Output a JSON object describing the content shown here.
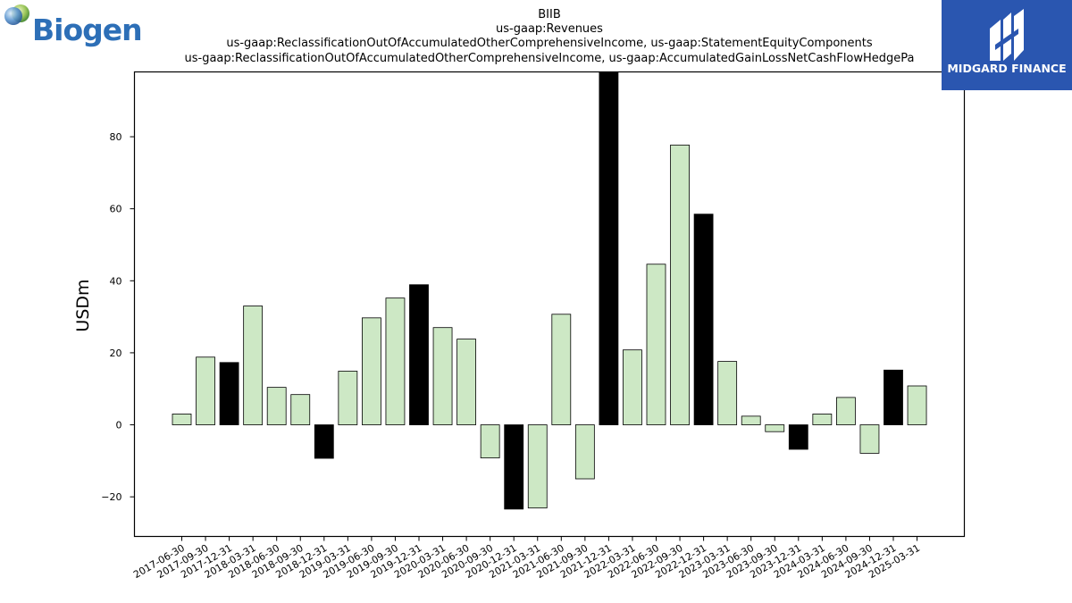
{
  "logos": {
    "left_text": "Biogen",
    "left_icon": "globe-icon",
    "right_text": "MIDGARD FINANCE",
    "right_icon": "midgard-mark-icon"
  },
  "chart_data": {
    "type": "bar",
    "title_lines": [
      "BIIB",
      "us-gaap:Revenues",
      "us-gaap:ReclassificationOutOfAccumulatedOtherComprehensiveIncome, us-gaap:StatementEquityComponents",
      "us-gaap:ReclassificationOutOfAccumulatedOtherComprehensiveIncome, us-gaap:AccumulatedGainLossNetCashFlowHedgePa"
    ],
    "ylabel": "USDm",
    "xlabel": "",
    "ylim": [
      -31,
      98
    ],
    "yticks": [
      -20,
      0,
      20,
      40,
      60,
      80
    ],
    "grid": false,
    "colors": {
      "quarter": "#cde8c5",
      "year_end": "#000000",
      "edge": "#000000"
    },
    "categories": [
      "2017-06-30",
      "2017-09-30",
      "2017-12-31",
      "2018-03-31",
      "2018-06-30",
      "2018-09-30",
      "2018-12-31",
      "2019-03-31",
      "2019-06-30",
      "2019-09-30",
      "2019-12-31",
      "2020-03-31",
      "2020-06-30",
      "2020-09-30",
      "2020-12-31",
      "2021-03-31",
      "2021-06-30",
      "2021-09-30",
      "2021-12-31",
      "2022-03-31",
      "2022-06-30",
      "2022-09-30",
      "2022-12-31",
      "2023-03-31",
      "2023-06-30",
      "2023-09-30",
      "2023-12-31",
      "2024-03-31",
      "2024-06-30",
      "2024-09-30",
      "2024-12-31",
      "2025-03-31"
    ],
    "values": [
      3.0,
      18.8,
      17.3,
      33.0,
      10.4,
      8.4,
      -9.3,
      14.9,
      29.7,
      35.2,
      38.9,
      27.0,
      23.8,
      -9.2,
      -23.4,
      -23.1,
      30.7,
      -15.0,
      98.0,
      20.8,
      44.6,
      77.7,
      58.5,
      17.6,
      2.4,
      -1.9,
      -6.8,
      3.0,
      7.6,
      -7.9,
      15.2,
      10.8
    ]
  }
}
